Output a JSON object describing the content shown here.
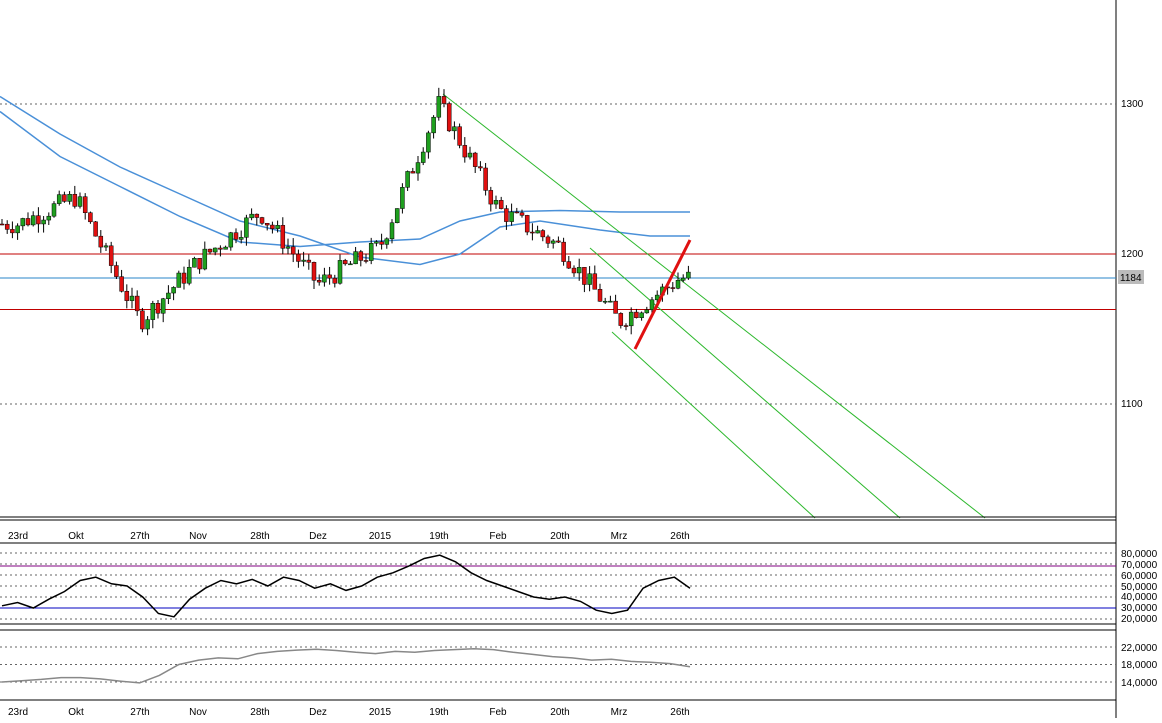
{
  "colors": {
    "up": "#1fa01f",
    "down": "#e01010",
    "ma": "#4a90d8",
    "channel": "#2db82d",
    "hline_red": "#c00000",
    "hline_blue": "#2a86c8",
    "rsi_upper": "#800080",
    "rsi_lower": "#0000c0",
    "vol": "#888888",
    "grid": "#666666",
    "price_marker_bg": "#bbbbbb"
  },
  "main_axis": {
    "ticks": [
      "1300",
      "1200",
      "1100"
    ],
    "current_price_label": "1184"
  },
  "x_axis_labels": [
    "23rd",
    "Okt",
    "27th",
    "Nov",
    "28th",
    "Dez",
    "2015",
    "19th",
    "Feb",
    "20th",
    "Mrz",
    "26th"
  ],
  "rsi_axis": {
    "ticks": [
      "80,0000",
      "70,0000",
      "60,0000",
      "50,0000",
      "40,0000",
      "30,0000",
      "20,0000"
    ]
  },
  "vol_axis": {
    "ticks": [
      "22,0000",
      "18,0000",
      "14,0000"
    ]
  },
  "chart_data": [
    {
      "type": "candlestick",
      "ylim": [
        1010,
        1335
      ],
      "y_ticks": [
        1100,
        1200,
        1300
      ],
      "categories": [
        "23rd",
        "Okt",
        "27th",
        "Nov",
        "28th",
        "Dez",
        "2015",
        "19th",
        "Feb",
        "20th",
        "Mrz",
        "26th"
      ],
      "horizontal_lines": [
        {
          "value": 1200,
          "color": "red"
        },
        {
          "value": 1184,
          "color": "blue"
        },
        {
          "value": 1163,
          "color": "red"
        }
      ],
      "current_price": 1184,
      "key_points": [
        {
          "date": "23rd",
          "close": 1220
        },
        {
          "date": "Okt",
          "close": 1238
        },
        {
          "date": "27th",
          "close": 1155
        },
        {
          "date": "Nov",
          "close": 1195
        },
        {
          "date": "28th",
          "close": 1228
        },
        {
          "date": "Dez",
          "close": 1180
        },
        {
          "date": "2015",
          "close": 1205
        },
        {
          "date": "19th",
          "close": 1300
        },
        {
          "date": "Feb",
          "close": 1230
        },
        {
          "date": "20th",
          "close": 1205
        },
        {
          "date": "Mrz",
          "close": 1155
        },
        {
          "date": "26th",
          "close": 1184
        }
      ],
      "moving_averages": [
        {
          "points": [
            [
              0,
              1295
            ],
            [
              60,
              1265
            ],
            [
              120,
              1245
            ],
            [
              180,
              1225
            ],
            [
              240,
              1208
            ],
            [
              300,
              1205
            ],
            [
              360,
              1208
            ],
            [
              420,
              1210
            ],
            [
              460,
              1222
            ],
            [
              500,
              1228
            ],
            [
              560,
              1229
            ],
            [
              620,
              1228
            ],
            [
              690,
              1228
            ]
          ]
        },
        {
          "points": [
            [
              0,
              1305
            ],
            [
              60,
              1280
            ],
            [
              120,
              1258
            ],
            [
              180,
              1240
            ],
            [
              240,
              1222
            ],
            [
              300,
              1212
            ],
            [
              360,
              1198
            ],
            [
              420,
              1193
            ],
            [
              460,
              1200
            ],
            [
              500,
              1218
            ],
            [
              540,
              1222
            ],
            [
              600,
              1216
            ],
            [
              650,
              1212
            ],
            [
              690,
              1212
            ]
          ]
        }
      ]
    },
    {
      "type": "line",
      "ylim": [
        15,
        85
      ],
      "y_ticks": [
        20,
        30,
        40,
        50,
        60,
        70,
        80
      ],
      "reference_lines": [
        70,
        30
      ],
      "values": [
        32,
        35,
        30,
        38,
        45,
        55,
        58,
        52,
        50,
        40,
        25,
        22,
        38,
        48,
        55,
        52,
        56,
        50,
        58,
        55,
        48,
        52,
        46,
        50,
        58,
        62,
        68,
        75,
        78,
        72,
        62,
        55,
        50,
        45,
        40,
        38,
        40,
        36,
        28,
        25,
        28,
        48,
        55,
        58,
        48
      ]
    },
    {
      "type": "area",
      "ylim": [
        12,
        24
      ],
      "y_ticks": [
        14,
        18,
        22
      ],
      "values": [
        14.0,
        14.3,
        14.6,
        15.0,
        15.0,
        14.7,
        14.2,
        13.8,
        15.5,
        18.0,
        19.0,
        19.5,
        19.3,
        20.5,
        21.0,
        21.3,
        21.5,
        21.2,
        20.8,
        20.5,
        21.0,
        20.8,
        21.2,
        21.4,
        21.6,
        21.4,
        20.8,
        20.3,
        19.8,
        19.5,
        19.0,
        19.2,
        18.7,
        18.5,
        18.2,
        17.5
      ]
    }
  ]
}
